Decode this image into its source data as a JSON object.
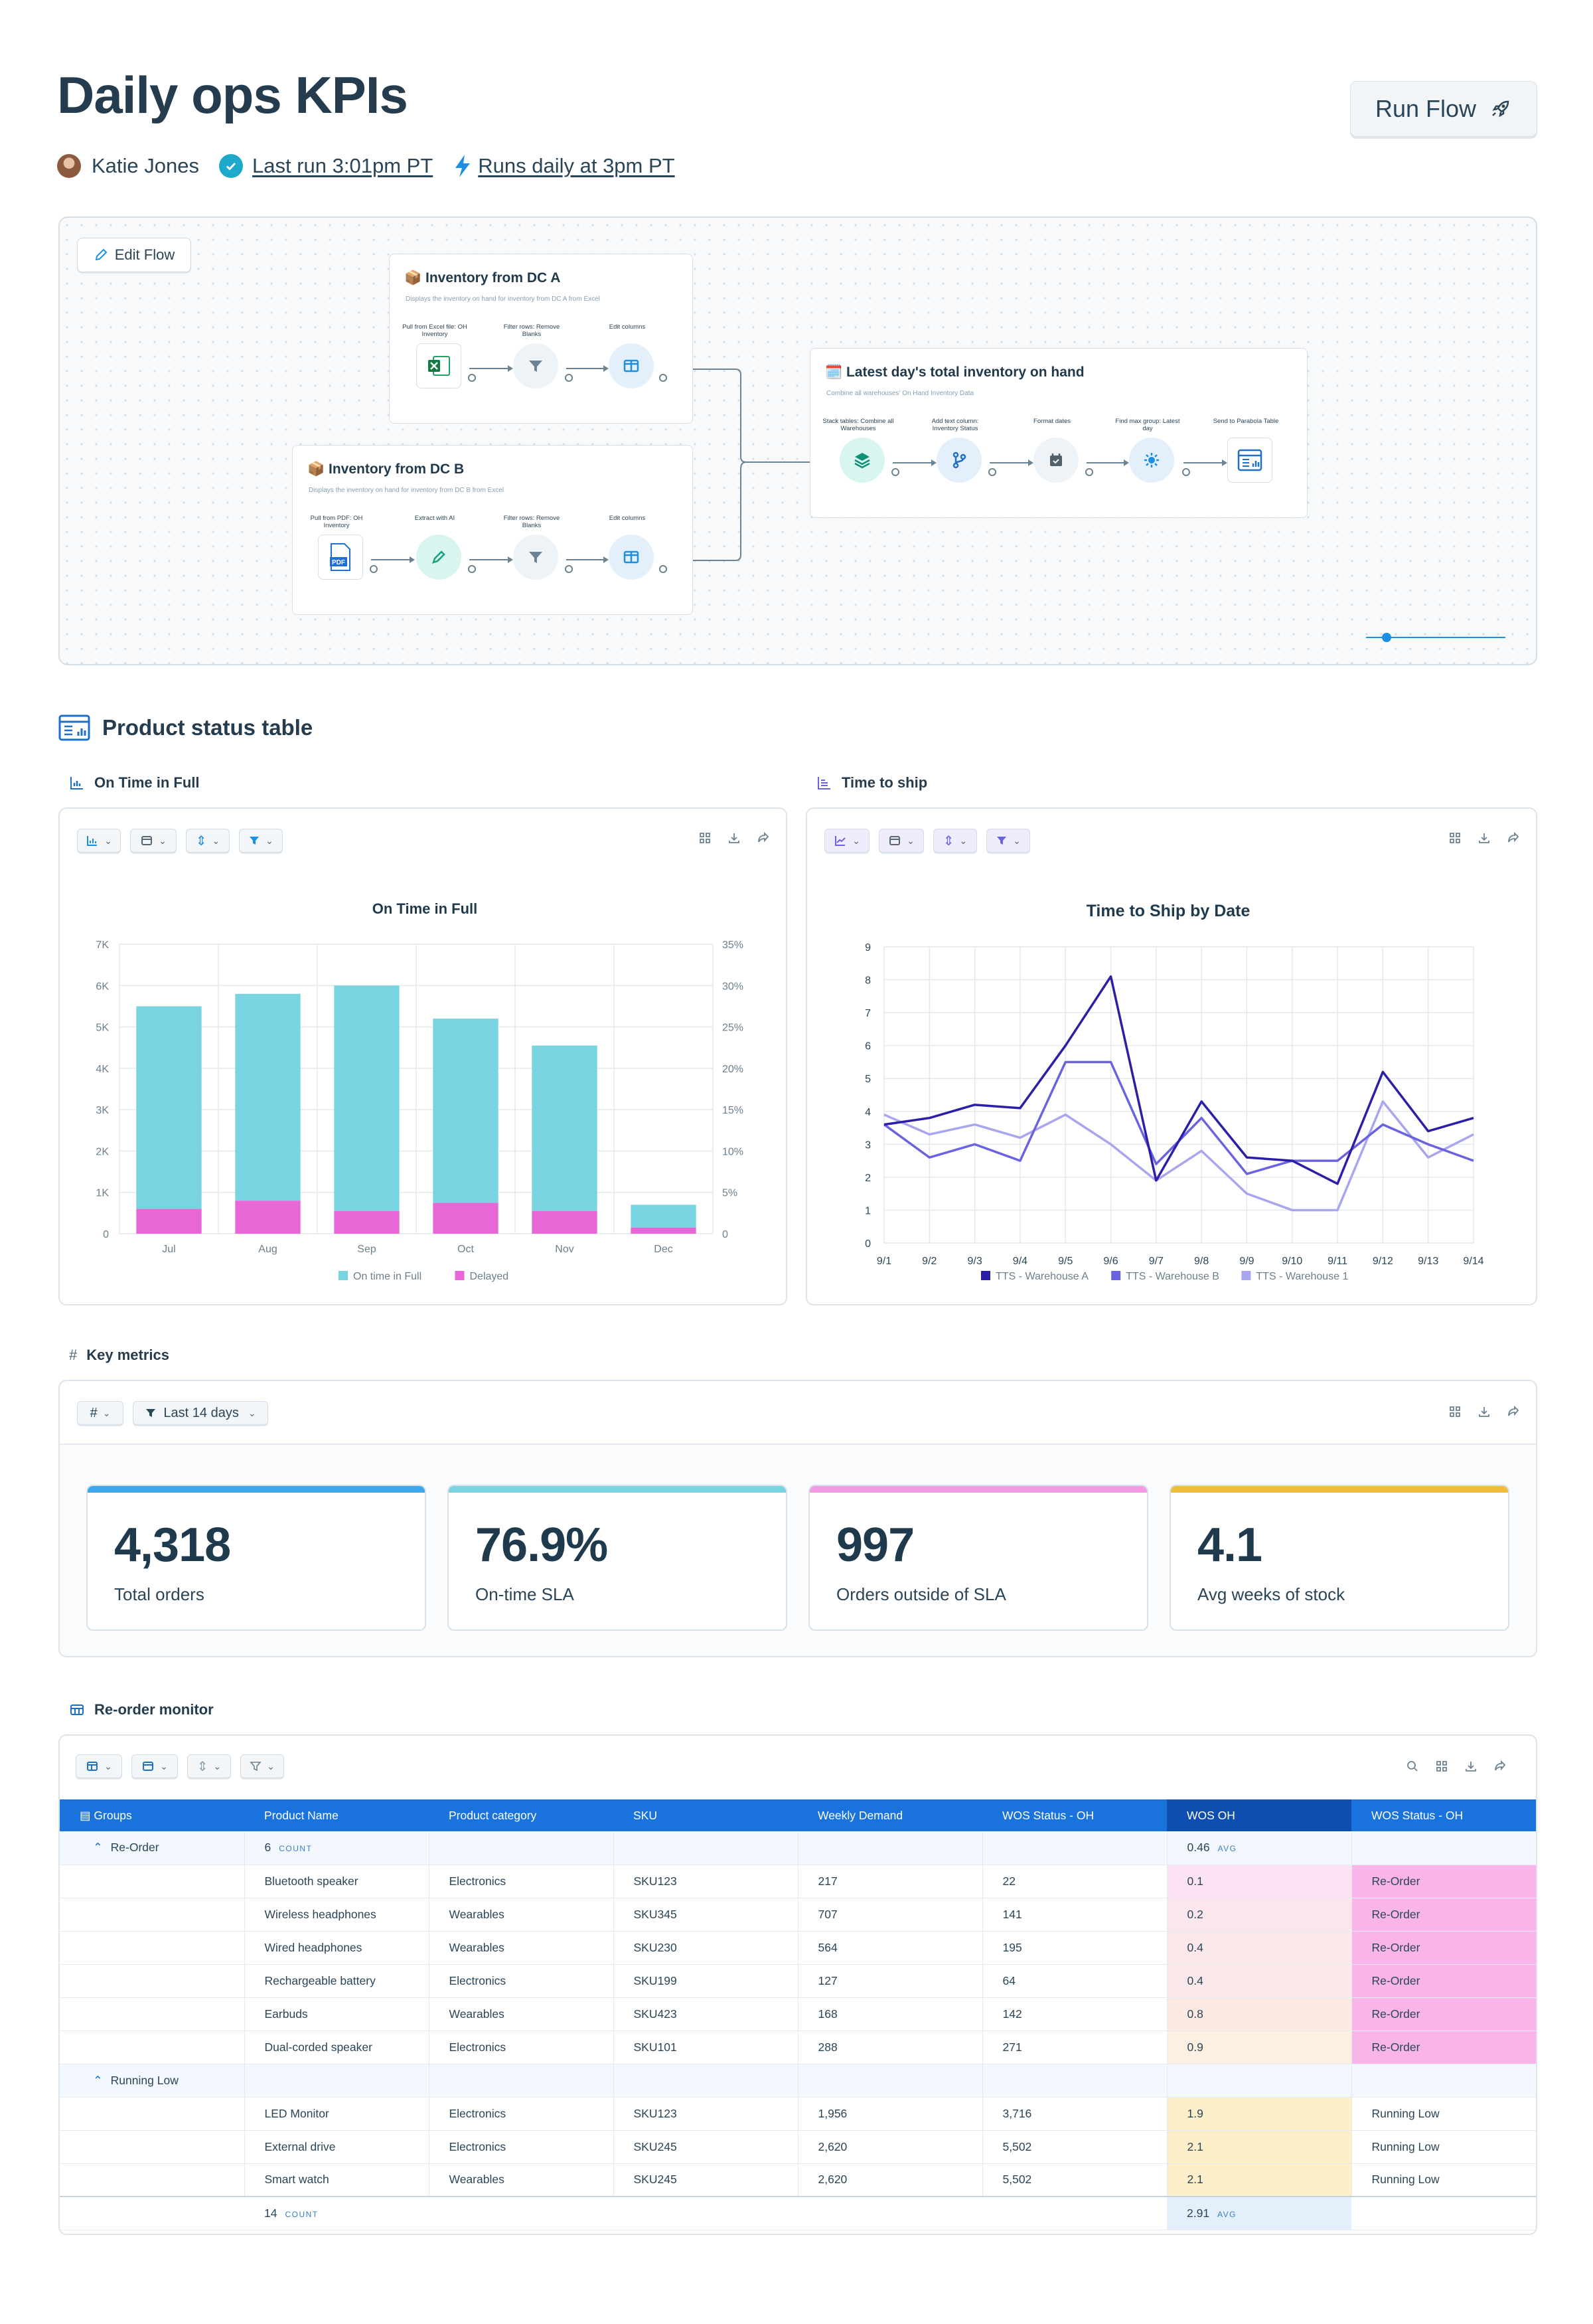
{
  "header": {
    "title": "Daily ops KPIs",
    "user": "Katie Jones",
    "last_run": "Last run 3:01pm PT",
    "schedule": "Runs daily at 3pm PT",
    "run_button": "Run Flow"
  },
  "flow": {
    "edit_button": "Edit Flow",
    "node_a": {
      "title": "Inventory from DC A",
      "desc": "Displays the inventory on hand for inventory from DC A from Excel",
      "steps": [
        "Pull from Excel file: OH Inventory",
        "Filter rows: Remove Blanks",
        "Edit columns"
      ]
    },
    "node_b": {
      "title": "Inventory from DC B",
      "desc": "Displays the inventory on hand for inventory from DC B from Excel",
      "steps": [
        "Pull from PDF: OH Inventory",
        "Extract with AI",
        "Filter rows: Remove Blanks",
        "Edit columns"
      ]
    },
    "node_c": {
      "title": "Latest day's total inventory on hand",
      "desc": "Combine all warehouses' On Hand Inventory Data",
      "steps": [
        "Stack tables: Combine all Warehouses",
        "Add text column: Inventory Status",
        "Format dates",
        "Find max group: Latest day",
        "Send to Parabola Table"
      ]
    }
  },
  "section_title": "Product status table",
  "otif": {
    "header": "On Time in Full"
  },
  "tts": {
    "header": "Time to ship"
  },
  "chart_data": [
    {
      "type": "bar",
      "title": "On Time in Full",
      "categories": [
        "Jul",
        "Aug",
        "Sep",
        "Oct",
        "Nov",
        "Dec"
      ],
      "series": [
        {
          "name": "On time in Full",
          "values": [
            4900,
            5000,
            5450,
            4450,
            4000,
            550
          ],
          "color": "#79d4e1"
        },
        {
          "name": "Delayed",
          "values": [
            600,
            800,
            550,
            750,
            550,
            150
          ],
          "color": "#e867d6"
        }
      ],
      "stacked": true,
      "ylim": [
        0,
        7000
      ],
      "yticks": [
        "0",
        "1K",
        "2K",
        "3K",
        "4K",
        "5K",
        "6K",
        "7K"
      ],
      "y2ticks": [
        "0",
        "5%",
        "10%",
        "15%",
        "20%",
        "25%",
        "30%",
        "35%"
      ],
      "legend": "bottom"
    },
    {
      "type": "line",
      "title": "Time to Ship by Date",
      "x": [
        "9/1",
        "9/2",
        "9/3",
        "9/4",
        "9/5",
        "9/6",
        "9/7",
        "9/8",
        "9/9",
        "9/10",
        "9/11",
        "9/12",
        "9/13",
        "9/14"
      ],
      "series": [
        {
          "name": "TTS - Warehouse A",
          "values": [
            3.6,
            3.8,
            4.2,
            4.1,
            6.0,
            8.1,
            1.9,
            4.3,
            2.6,
            2.5,
            1.8,
            5.2,
            3.4,
            3.8
          ],
          "color": "#2b1fa8"
        },
        {
          "name": "TTS - Warehouse B",
          "values": [
            3.6,
            2.6,
            3.0,
            2.5,
            5.5,
            5.5,
            2.4,
            3.8,
            2.1,
            2.5,
            2.5,
            3.6,
            3.0,
            2.5
          ],
          "color": "#6a63e0"
        },
        {
          "name": "TTS - Warehouse 1",
          "values": [
            3.9,
            3.3,
            3.6,
            3.2,
            3.9,
            3.0,
            1.9,
            2.8,
            1.5,
            1.0,
            1.0,
            4.3,
            2.6,
            3.3
          ],
          "color": "#a8a6ef"
        }
      ],
      "ylim": [
        0,
        9
      ],
      "legend": "bottom"
    }
  ],
  "metrics": {
    "header": "Key metrics",
    "filter": "Last 14 days",
    "cards": [
      {
        "value": "4,318",
        "label": "Total orders",
        "color": "#3aa8ea"
      },
      {
        "value": "76.9%",
        "label": "On-time SLA",
        "color": "#79d4e1"
      },
      {
        "value": "997",
        "label": "Orders outside of SLA",
        "color": "#f49ae3"
      },
      {
        "value": "4.1",
        "label": "Avg weeks of stock",
        "color": "#efbd3a"
      }
    ]
  },
  "reorder": {
    "header": "Re-order monitor",
    "columns": [
      "Groups",
      "Product Name",
      "Product category",
      "SKU",
      "Weekly Demand",
      "WOS Status - OH",
      "WOS OH",
      "WOS Status - OH"
    ],
    "group1": {
      "name": "Re-Order",
      "count": "6",
      "count_label": "COUNT",
      "avg": "0.46",
      "avg_label": "AVG"
    },
    "group1_rows": [
      [
        "Bluetooth speaker",
        "Electronics",
        "SKU123",
        "217",
        "22",
        "0.1",
        "Re-Order"
      ],
      [
        "Wireless headphones",
        "Wearables",
        "SKU345",
        "707",
        "141",
        "0.2",
        "Re-Order"
      ],
      [
        "Wired headphones",
        "Wearables",
        "SKU230",
        "564",
        "195",
        "0.4",
        "Re-Order"
      ],
      [
        "Rechargeable battery",
        "Electronics",
        "SKU199",
        "127",
        "64",
        "0.4",
        "Re-Order"
      ],
      [
        "Earbuds",
        "Wearables",
        "SKU423",
        "168",
        "142",
        "0.8",
        "Re-Order"
      ],
      [
        "Dual-corded speaker",
        "Electronics",
        "SKU101",
        "288",
        "271",
        "0.9",
        "Re-Order"
      ]
    ],
    "group2": {
      "name": "Running Low"
    },
    "group2_rows": [
      [
        "LED Monitor",
        "Electronics",
        "SKU123",
        "1,956",
        "3,716",
        "1.9",
        "Running Low"
      ],
      [
        "External drive",
        "Electronics",
        "SKU245",
        "2,620",
        "5,502",
        "2.1",
        "Running Low"
      ],
      [
        "Smart watch",
        "Wearables",
        "SKU245",
        "2,620",
        "5,502",
        "2.1",
        "Running Low"
      ]
    ],
    "footer": {
      "count": "14",
      "count_label": "COUNT",
      "avg": "2.91",
      "avg_label": "AVG"
    }
  }
}
